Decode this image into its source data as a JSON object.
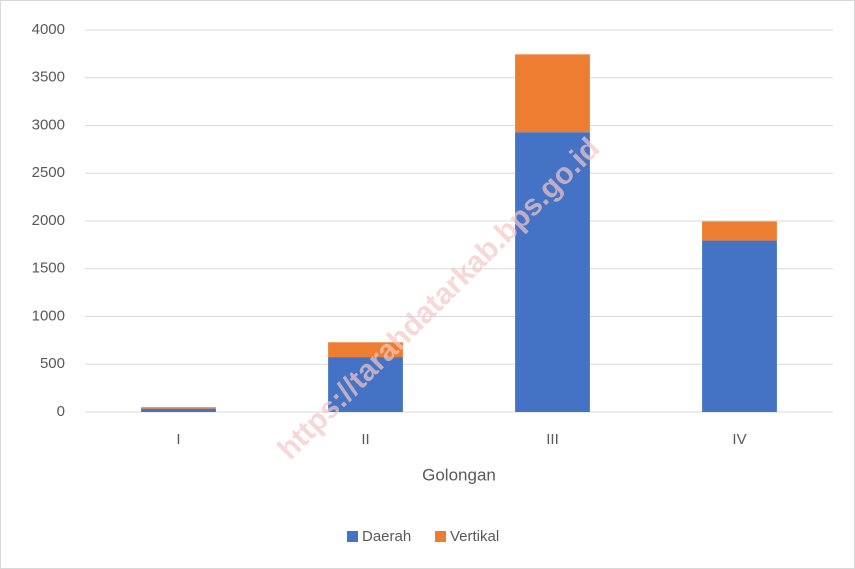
{
  "chart_data": {
    "type": "stacked_bar",
    "categories": [
      "I",
      "II",
      "III",
      "IV"
    ],
    "series": [
      {
        "name": "Daerah",
        "color": "#4472c4",
        "values": [
          35,
          575,
          2930,
          1795
        ]
      },
      {
        "name": "Vertikal",
        "color": "#ed7d31",
        "values": [
          15,
          155,
          815,
          200
        ]
      }
    ],
    "x_label": "Golongan",
    "ylim": [
      0,
      4000
    ],
    "yticks": [
      0,
      500,
      1000,
      1500,
      2000,
      2500,
      3000,
      3500,
      4000
    ],
    "grid": true,
    "legend": "bottom",
    "watermark": "https://tarahdatarkab.bps.go.id"
  }
}
